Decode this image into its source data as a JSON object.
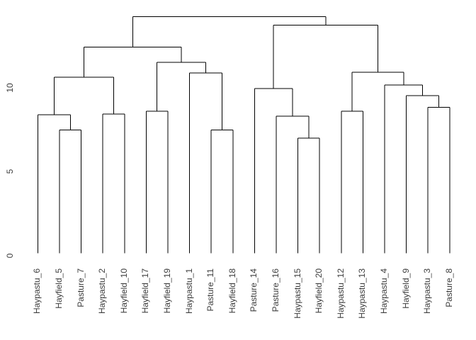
{
  "chart_data": {
    "type": "dendrogram",
    "title": "",
    "xlabel": "",
    "ylabel": "",
    "yticks": [
      "0",
      "5",
      "10"
    ],
    "ytick_values": [
      0,
      5,
      10
    ],
    "ylim": [
      0,
      14.8
    ],
    "grid": false,
    "orientation": "vertical",
    "leaves": [
      "Haypastu_6",
      "Hayfield_5",
      "Pasture_7",
      "Haypastu_2",
      "Hayfield_10",
      "Hayfield_17",
      "Hayfield_19",
      "Haypastu_1",
      "Pasture_11",
      "Hayfield_18",
      "Pasture_14",
      "Pasture_16",
      "Haypastu_15",
      "Hayfield_20",
      "Haypastu_12",
      "Haypastu_13",
      "Haypastu_4",
      "Hayfield_9",
      "Haypastu_3",
      "Pasture_8"
    ],
    "merges": [
      {
        "a": "L2",
        "b": "L3",
        "height": 7.35
      },
      {
        "a": "L1",
        "b": "M0",
        "height": 8.25
      },
      {
        "a": "L4",
        "b": "L5",
        "height": 8.3
      },
      {
        "a": "M1",
        "b": "M2",
        "height": 10.49
      },
      {
        "a": "L6",
        "b": "L7",
        "height": 8.46
      },
      {
        "a": "L9",
        "b": "L10",
        "height": 7.35
      },
      {
        "a": "L8",
        "b": "M5",
        "height": 10.74
      },
      {
        "a": "M4",
        "b": "M6",
        "height": 11.37
      },
      {
        "a": "M3",
        "b": "M7",
        "height": 12.28
      },
      {
        "a": "L13",
        "b": "L14",
        "height": 6.86
      },
      {
        "a": "L12",
        "b": "M9",
        "height": 8.16
      },
      {
        "a": "L11",
        "b": "M10",
        "height": 9.81
      },
      {
        "a": "L15",
        "b": "L16",
        "height": 8.46
      },
      {
        "a": "L19",
        "b": "L20",
        "height": 8.7
      },
      {
        "a": "L18",
        "b": "M13",
        "height": 9.39
      },
      {
        "a": "L17",
        "b": "M14",
        "height": 10.02
      },
      {
        "a": "M12",
        "b": "M15",
        "height": 10.78
      },
      {
        "a": "M11",
        "b": "M16",
        "height": 13.58
      },
      {
        "a": "M8",
        "b": "M17",
        "height": 14.1
      }
    ],
    "colors": {
      "line": "#000000",
      "text": "#3d3d3d",
      "background": "#ffffff"
    }
  }
}
